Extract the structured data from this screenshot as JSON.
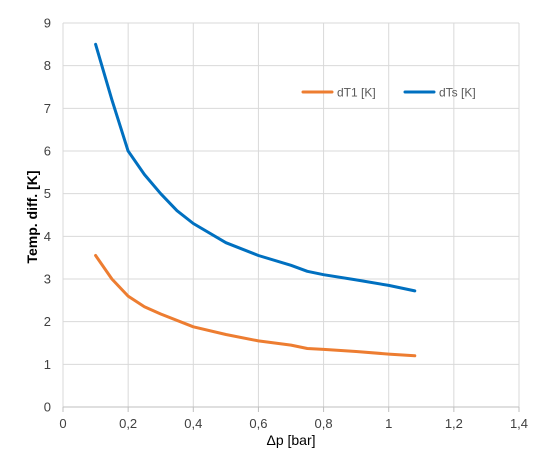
{
  "chart_data": {
    "type": "line",
    "title": "",
    "xlabel": "Δp [bar]",
    "ylabel": "Temp. diff.  [K]",
    "xlim": [
      0,
      1.4
    ],
    "ylim": [
      0,
      9
    ],
    "x_ticks": [
      "0",
      "0,2",
      "0,4",
      "0,6",
      "0,8",
      "1",
      "1,2",
      "1,4"
    ],
    "y_ticks": [
      "0",
      "1",
      "2",
      "3",
      "4",
      "5",
      "6",
      "7",
      "8",
      "9"
    ],
    "grid": true,
    "legend_position": "top-right",
    "series": [
      {
        "name": "dT1 [K]",
        "color": "#ED7D31",
        "points": [
          [
            0.1,
            3.55
          ],
          [
            0.15,
            3.0
          ],
          [
            0.2,
            2.6
          ],
          [
            0.25,
            2.35
          ],
          [
            0.3,
            2.18
          ],
          [
            0.4,
            1.88
          ],
          [
            0.5,
            1.7
          ],
          [
            0.6,
            1.55
          ],
          [
            0.7,
            1.45
          ],
          [
            0.75,
            1.37
          ],
          [
            0.8,
            1.35
          ],
          [
            0.9,
            1.3
          ],
          [
            1.0,
            1.24
          ],
          [
            1.08,
            1.2
          ]
        ]
      },
      {
        "name": "dTs [K]",
        "color": "#0070C0",
        "points": [
          [
            0.1,
            8.5
          ],
          [
            0.15,
            7.2
          ],
          [
            0.2,
            6.0
          ],
          [
            0.25,
            5.45
          ],
          [
            0.3,
            5.0
          ],
          [
            0.35,
            4.6
          ],
          [
            0.4,
            4.3
          ],
          [
            0.5,
            3.85
          ],
          [
            0.6,
            3.55
          ],
          [
            0.7,
            3.32
          ],
          [
            0.75,
            3.18
          ],
          [
            0.8,
            3.1
          ],
          [
            0.9,
            2.98
          ],
          [
            1.0,
            2.85
          ],
          [
            1.08,
            2.72
          ]
        ]
      }
    ]
  }
}
